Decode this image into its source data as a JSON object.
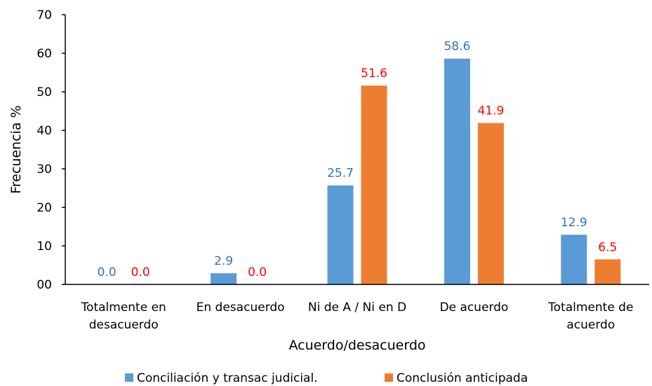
{
  "chart_data": {
    "type": "bar",
    "categories": [
      [
        "Totalmente en",
        "desacuerdo"
      ],
      [
        "En desacuerdo"
      ],
      [
        "Ni de A / Ni en D"
      ],
      [
        "De acuerdo"
      ],
      [
        "Totalmente de",
        "acuerdo"
      ]
    ],
    "series": [
      {
        "name": "Conciliación y transac judicial.",
        "color": "#5B9BD5",
        "label_color": "#2E75B6",
        "values": [
          0.0,
          2.9,
          25.7,
          58.6,
          12.9
        ],
        "labels": [
          "0.0",
          "2.9",
          "25.7",
          "58.6",
          "12.9"
        ]
      },
      {
        "name": "Conclusión anticipada",
        "color": "#ED7D31",
        "label_color": "#FF0000",
        "values": [
          0.0,
          0.0,
          51.6,
          41.9,
          6.5
        ],
        "labels": [
          "0.0",
          "0.0",
          "51.6",
          "41.9",
          "6.5"
        ]
      }
    ],
    "xlabel": "Acuerdo/desacuerdo",
    "ylabel": "Frecuencia %",
    "ylim": [
      0,
      70
    ],
    "yticks": [
      0,
      10,
      20,
      30,
      40,
      50,
      60,
      70
    ],
    "ytick_labels": [
      "00",
      "10",
      "20",
      "30",
      "40",
      "50",
      "60",
      "70"
    ],
    "grid": false,
    "legend_position": "bottom"
  }
}
